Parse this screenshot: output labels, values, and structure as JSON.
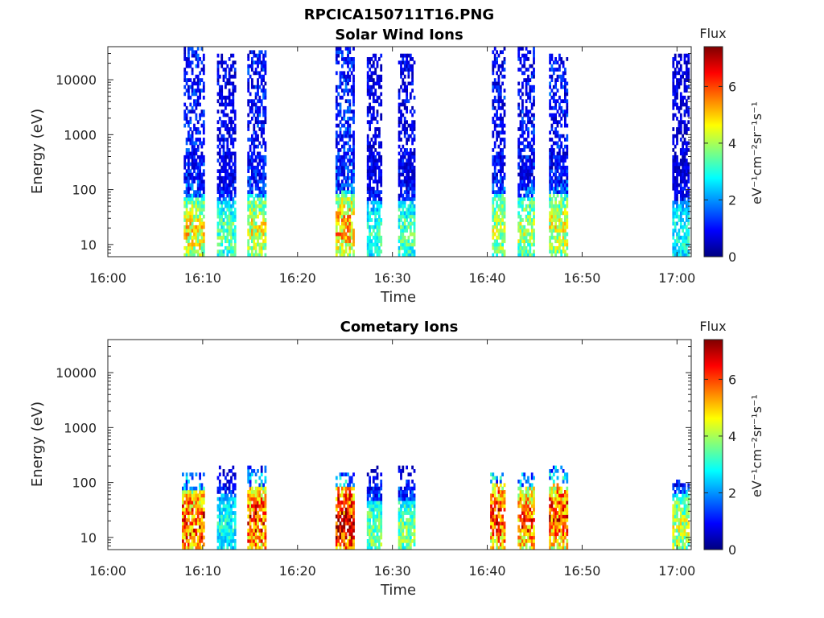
{
  "figure": {
    "suptitle": "RPCICA150711T16.PNG"
  },
  "colorscale": [
    "#00007f",
    "#0000ff",
    "#007fff",
    "#00ffff",
    "#7fff7f",
    "#ffff00",
    "#ff7f00",
    "#ff0000",
    "#7f0000"
  ],
  "chart_data": [
    {
      "type": "heatmap",
      "title": "Solar Wind Ions",
      "xlabel": "Time",
      "ylabel": "Energy (eV)",
      "x_ticks": [
        "16:00",
        "16:10",
        "16:20",
        "16:30",
        "16:40",
        "16:50",
        "17:00"
      ],
      "x_tick_minutes": [
        0,
        10,
        20,
        30,
        40,
        50,
        60
      ],
      "xlim_minutes": [
        0,
        61.5
      ],
      "y_ticks": [
        "10",
        "100",
        "1000",
        "10000"
      ],
      "y_tick_values": [
        10,
        100,
        1000,
        10000
      ],
      "y_scale": "log",
      "ylim": [
        6,
        40000
      ],
      "colorbar": {
        "label_top": "Flux",
        "unit_label": "eV⁻¹cm⁻²sr⁻¹s⁻¹",
        "ticks": [
          "0",
          "2",
          "4",
          "6"
        ],
        "tick_values": [
          0,
          2,
          4,
          6
        ],
        "range": [
          0,
          7.4
        ]
      },
      "bursts": [
        {
          "start_min": 8.0,
          "end_min": 10.0,
          "max_energy_ev": 40000,
          "peak_flux": 4.8,
          "peak_energy_ev": 18
        },
        {
          "start_min": 11.5,
          "end_min": 13.3,
          "max_energy_ev": 30000,
          "peak_flux": 3.5,
          "peak_energy_ev": 15
        },
        {
          "start_min": 14.7,
          "end_min": 16.5,
          "max_energy_ev": 35000,
          "peak_flux": 4.6,
          "peak_energy_ev": 18
        },
        {
          "start_min": 24.0,
          "end_min": 25.8,
          "max_energy_ev": 40000,
          "peak_flux": 5.2,
          "peak_energy_ev": 20
        },
        {
          "start_min": 27.3,
          "end_min": 28.8,
          "max_energy_ev": 30000,
          "peak_flux": 3.2,
          "peak_energy_ev": 15
        },
        {
          "start_min": 30.6,
          "end_min": 32.4,
          "max_energy_ev": 30000,
          "peak_flux": 3.5,
          "peak_energy_ev": 15
        },
        {
          "start_min": 40.5,
          "end_min": 41.9,
          "max_energy_ev": 40000,
          "peak_flux": 4.2,
          "peak_energy_ev": 20
        },
        {
          "start_min": 43.2,
          "end_min": 44.9,
          "max_energy_ev": 40000,
          "peak_flux": 4.2,
          "peak_energy_ev": 18
        },
        {
          "start_min": 46.5,
          "end_min": 48.4,
          "max_energy_ev": 30000,
          "peak_flux": 4.5,
          "peak_energy_ev": 20
        },
        {
          "start_min": 59.5,
          "end_min": 61.2,
          "max_energy_ev": 30000,
          "peak_flux": 3.0,
          "peak_energy_ev": 15
        }
      ]
    },
    {
      "type": "heatmap",
      "title": "Cometary Ions",
      "xlabel": "Time",
      "ylabel": "Energy (eV)",
      "x_ticks": [
        "16:00",
        "16:10",
        "16:20",
        "16:30",
        "16:40",
        "16:50",
        "17:00"
      ],
      "x_tick_minutes": [
        0,
        10,
        20,
        30,
        40,
        50,
        60
      ],
      "xlim_minutes": [
        0,
        61.5
      ],
      "y_ticks": [
        "10",
        "100",
        "1000",
        "10000"
      ],
      "y_tick_values": [
        10,
        100,
        1000,
        10000
      ],
      "y_scale": "log",
      "ylim": [
        6,
        40000
      ],
      "colorbar": {
        "label_top": "Flux",
        "unit_label": "eV⁻¹cm⁻²sr⁻¹s⁻¹",
        "ticks": [
          "0",
          "2",
          "4",
          "6"
        ],
        "tick_values": [
          0,
          2,
          4,
          6
        ],
        "range": [
          0,
          7.4
        ]
      },
      "bursts": [
        {
          "start_min": 7.8,
          "end_min": 10.0,
          "max_energy_ev": 150,
          "peak_flux": 6.2,
          "peak_energy_ev": 18
        },
        {
          "start_min": 11.5,
          "end_min": 13.3,
          "max_energy_ev": 200,
          "peak_flux": 3.0,
          "peak_energy_ev": 15
        },
        {
          "start_min": 14.7,
          "end_min": 16.5,
          "max_energy_ev": 200,
          "peak_flux": 6.3,
          "peak_energy_ev": 20
        },
        {
          "start_min": 24.0,
          "end_min": 25.8,
          "max_energy_ev": 150,
          "peak_flux": 7.0,
          "peak_energy_ev": 20
        },
        {
          "start_min": 27.3,
          "end_min": 28.8,
          "max_energy_ev": 200,
          "peak_flux": 3.8,
          "peak_energy_ev": 12
        },
        {
          "start_min": 30.6,
          "end_min": 32.4,
          "max_energy_ev": 200,
          "peak_flux": 3.8,
          "peak_energy_ev": 12
        },
        {
          "start_min": 40.3,
          "end_min": 41.9,
          "max_energy_ev": 150,
          "peak_flux": 6.3,
          "peak_energy_ev": 25
        },
        {
          "start_min": 43.2,
          "end_min": 44.9,
          "max_energy_ev": 150,
          "peak_flux": 6.0,
          "peak_energy_ev": 20
        },
        {
          "start_min": 46.5,
          "end_min": 48.4,
          "max_energy_ev": 200,
          "peak_flux": 6.2,
          "peak_energy_ev": 25
        },
        {
          "start_min": 59.5,
          "end_min": 61.2,
          "max_energy_ev": 120,
          "peak_flux": 4.3,
          "peak_energy_ev": 15
        }
      ]
    }
  ]
}
